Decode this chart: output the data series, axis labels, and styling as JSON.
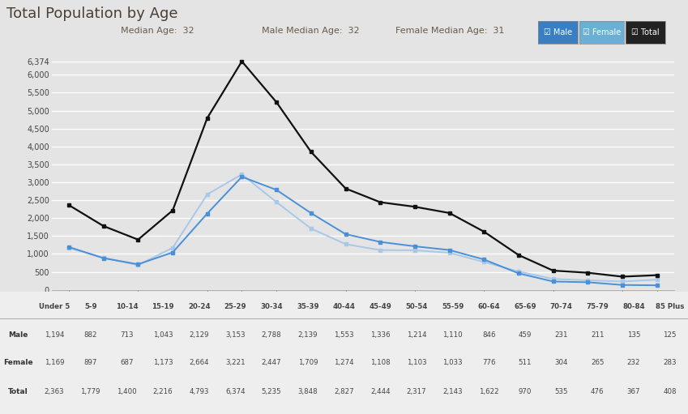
{
  "title": "Total Population by Age",
  "subtitle_median": "Median Age:  32",
  "subtitle_male": "Male Median Age:  32",
  "subtitle_female": "Female Median Age:  31",
  "categories": [
    "Under 5",
    "5-9",
    "10-14",
    "15-19",
    "20-24",
    "25-29",
    "30-34",
    "35-39",
    "40-44",
    "45-49",
    "50-54",
    "55-59",
    "60-64",
    "65-69",
    "70-74",
    "75-79",
    "80-84",
    "85 Plus"
  ],
  "male": [
    1194,
    882,
    713,
    1043,
    2129,
    3153,
    2788,
    2139,
    1553,
    1336,
    1214,
    1110,
    846,
    459,
    231,
    211,
    135,
    125
  ],
  "female": [
    1169,
    897,
    687,
    1173,
    2664,
    3221,
    2447,
    1709,
    1274,
    1108,
    1103,
    1033,
    776,
    511,
    304,
    265,
    232,
    283
  ],
  "total": [
    2363,
    1779,
    1400,
    2216,
    4793,
    6374,
    5235,
    3848,
    2827,
    2444,
    2317,
    2143,
    1622,
    970,
    535,
    476,
    367,
    408
  ],
  "male_color": "#4a90d9",
  "female_color": "#a8c8e8",
  "total_color": "#111111",
  "bg_color": "#e4e4e4",
  "plot_bg_color": "#e4e4e4",
  "grid_color": "#ffffff",
  "ylim": [
    0,
    6700
  ],
  "yticks": [
    0,
    500,
    1000,
    1500,
    2000,
    2500,
    3000,
    3500,
    4000,
    4500,
    5000,
    5500,
    6000,
    6374
  ],
  "x_tick_positions": [
    0,
    2,
    4,
    5,
    6,
    8,
    10,
    12,
    14,
    16,
    17
  ],
  "x_tick_labels": [
    "Under 5",
    "10-14",
    "20-24",
    "25-29",
    "30-34",
    "40-44",
    "50-54",
    "60-64",
    "70-74",
    "80-84",
    "85 Plus"
  ],
  "legend_male_bg": "#3a7fc1",
  "legend_female_bg": "#6aafd4",
  "legend_total_bg": "#222222",
  "table_header_color": "#555555",
  "table_text_color": "#444444",
  "table_row_label_color": "#333333"
}
